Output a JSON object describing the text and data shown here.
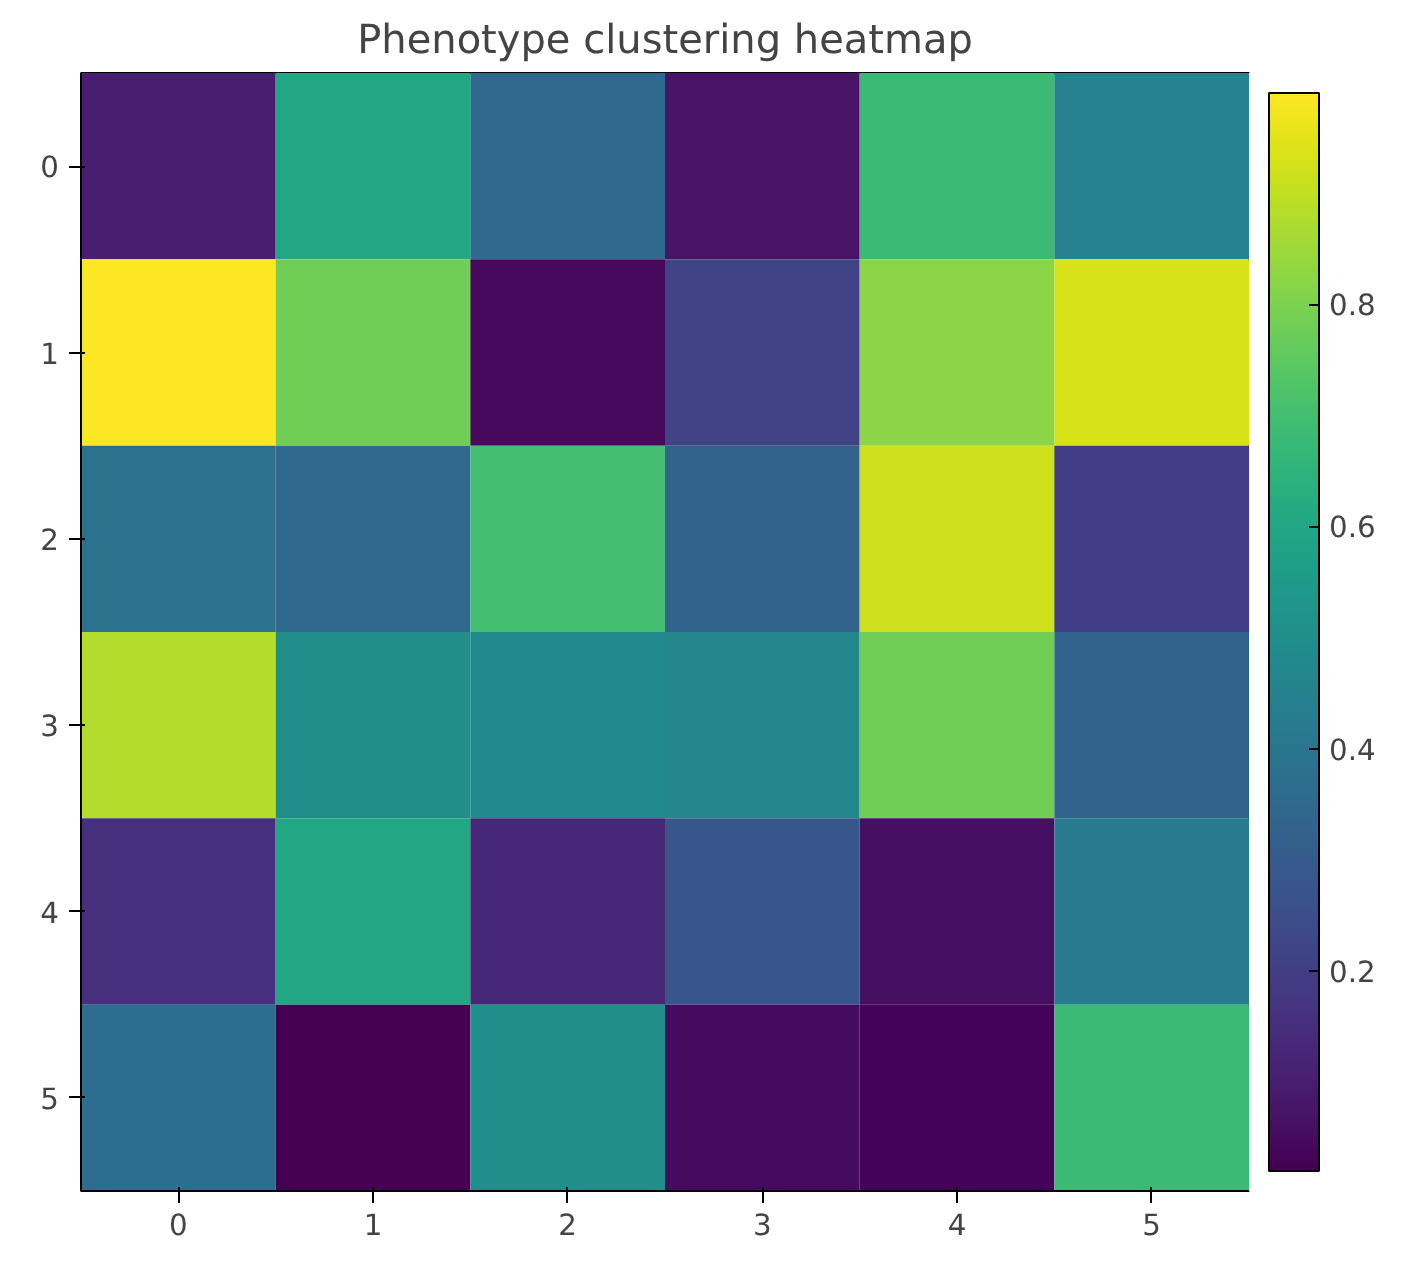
{
  "chart_data": {
    "type": "heatmap",
    "title": "Phenotype clustering heatmap",
    "categories": [
      "0",
      "1",
      "2",
      "3",
      "4",
      "5"
    ],
    "y_categories": [
      "0",
      "1",
      "2",
      "3",
      "4",
      "5"
    ],
    "cells": [
      [
        0.1,
        0.6,
        0.35,
        0.07,
        0.68,
        0.45
      ],
      [
        0.99,
        0.78,
        0.04,
        0.22,
        0.82,
        0.93
      ],
      [
        0.38,
        0.35,
        0.7,
        0.33,
        0.92,
        0.2
      ],
      [
        0.88,
        0.5,
        0.48,
        0.47,
        0.78,
        0.33
      ],
      [
        0.15,
        0.6,
        0.13,
        0.28,
        0.06,
        0.42
      ],
      [
        0.37,
        0.02,
        0.5,
        0.05,
        0.03,
        0.68
      ]
    ],
    "clim": [
      0.02,
      0.99
    ],
    "cticks": [
      0.2,
      0.4,
      0.6,
      0.8
    ],
    "grid": false
  }
}
